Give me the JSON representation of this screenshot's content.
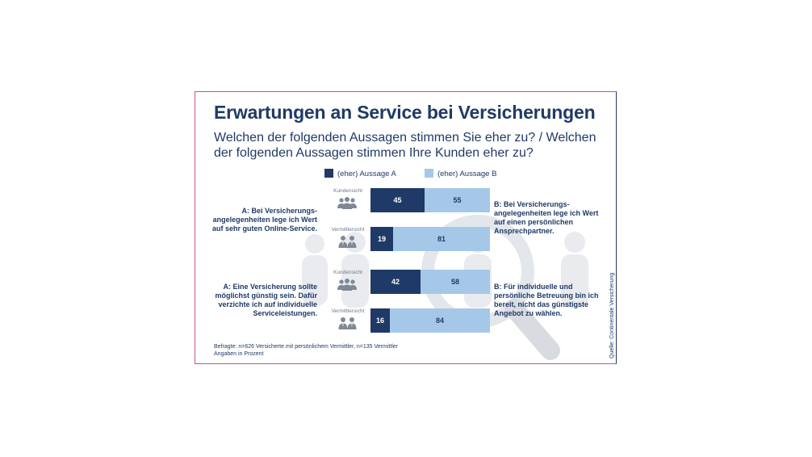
{
  "colors": {
    "series_a": "#1f3a66",
    "series_b": "#a6c8e8",
    "frame": "#c9547a",
    "text": "#1f3a66"
  },
  "title": "Erwartungen an Service bei Versicherungen",
  "subtitle": "Welchen der folgenden Aussagen stimmen Sie eher zu? / Welchen der folgenden Aussagen stimmen Ihre Kunden eher zu?",
  "legend": {
    "a": "(eher) Aussage A",
    "b": "(eher) Aussage B"
  },
  "chart_data": {
    "type": "bar",
    "orientation": "horizontal-stacked-100",
    "title": "Erwartungen an Service bei Versicherungen",
    "categories": [
      "Kundensicht",
      "Vermittlersicht",
      "Kundensicht",
      "Vermittlersicht"
    ],
    "series": [
      {
        "name": "(eher) Aussage A",
        "values": [
          45,
          19,
          42,
          16
        ]
      },
      {
        "name": "(eher) Aussage B",
        "values": [
          55,
          81,
          58,
          84
        ]
      }
    ],
    "xlim": [
      0,
      100
    ],
    "unit": "Prozent"
  },
  "groups": [
    {
      "statement_a": "A: Bei Versicherungs-angelegenheiten lege ich Wert auf sehr guten Online-Service.",
      "statement_b": "B: Bei Versicherungs-angelegenheiten lege ich Wert auf einen persönlichen Ansprechpartner.",
      "rows": [
        {
          "label": "Kundensicht",
          "icon": "customers-icon"
        },
        {
          "label": "Vermittlersicht",
          "icon": "brokers-icon"
        }
      ]
    },
    {
      "statement_a": "A: Eine Versicherung sollte möglichst günstig sein. Dafür verzichte ich auf individuelle Serviceleistungen.",
      "statement_b": "B: Für individuelle und persönliche Betreuung bin ich bereit, nicht das günstigste Angebot zu wählen.",
      "rows": [
        {
          "label": "Kundensicht",
          "icon": "customers-icon"
        },
        {
          "label": "Vermittlersicht",
          "icon": "brokers-icon"
        }
      ]
    }
  ],
  "footnote": {
    "line1": "Befragte: n=626 Versicherte mit persönlichem Vermittler, n=135 Vermittler",
    "line2": "Angaben in Prozent"
  },
  "source": "Quelle: Continentale Versicherung"
}
